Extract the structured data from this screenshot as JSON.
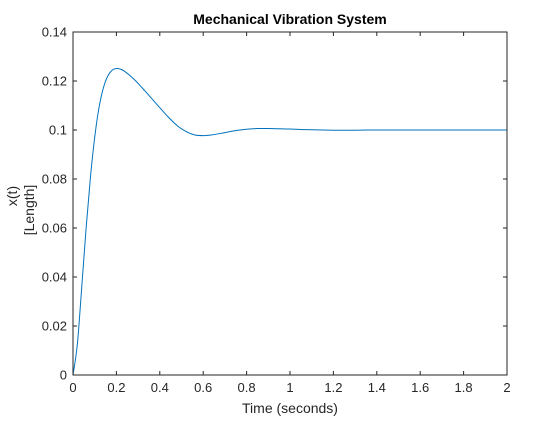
{
  "chart_data": {
    "type": "line",
    "title": "Mechanical Vibration System",
    "xlabel": "Time (seconds)",
    "ylabel_lines": [
      "x(t)",
      "[Length]"
    ],
    "xlim": [
      0,
      2
    ],
    "ylim": [
      0,
      0.14
    ],
    "xticks": [
      0,
      0.2,
      0.4,
      0.6,
      0.8,
      1,
      1.2,
      1.4,
      1.6,
      1.8,
      2
    ],
    "xtick_labels": [
      "0",
      "0.2",
      "0.4",
      "0.6",
      "0.8",
      "1",
      "1.2",
      "1.4",
      "1.6",
      "1.8",
      "2"
    ],
    "yticks": [
      0,
      0.02,
      0.04,
      0.06,
      0.08,
      0.1,
      0.12,
      0.14
    ],
    "ytick_labels": [
      "0",
      "0.02",
      "0.04",
      "0.06",
      "0.08",
      "0.1",
      "0.12",
      "0.14"
    ],
    "grid": false,
    "line_color": "#0072BD",
    "series": [
      {
        "x": [
          0,
          0.02,
          0.04,
          0.06,
          0.08,
          0.1,
          0.12,
          0.14,
          0.16,
          0.18,
          0.2,
          0.22,
          0.24,
          0.26,
          0.28,
          0.3,
          0.32,
          0.34,
          0.36,
          0.38,
          0.4,
          0.44,
          0.48,
          0.52,
          0.56,
          0.6,
          0.64,
          0.68,
          0.72,
          0.76,
          0.8,
          0.85,
          0.9,
          0.95,
          1.0,
          1.05,
          1.1,
          1.15,
          1.2,
          1.25,
          1.3,
          1.35,
          1.4,
          1.5,
          1.6,
          1.7,
          1.8,
          1.9,
          2.0
        ],
        "y": [
          0,
          0.0125,
          0.0355,
          0.0594,
          0.0804,
          0.097,
          0.1092,
          0.1172,
          0.122,
          0.1244,
          0.1251,
          0.1248,
          0.1238,
          0.1224,
          0.1208,
          0.119,
          0.1171,
          0.1151,
          0.1131,
          0.1111,
          0.1091,
          0.1052,
          0.1018,
          0.0994,
          0.098,
          0.0977,
          0.098,
          0.0986,
          0.0993,
          0.0999,
          0.1003,
          0.1006,
          0.1006,
          0.1005,
          0.1004,
          0.1002,
          0.1001,
          0.1,
          0.0999,
          0.0999,
          0.0999,
          0.1,
          0.1,
          0.1,
          0.1,
          0.1,
          0.1,
          0.1,
          0.1
        ]
      }
    ]
  }
}
